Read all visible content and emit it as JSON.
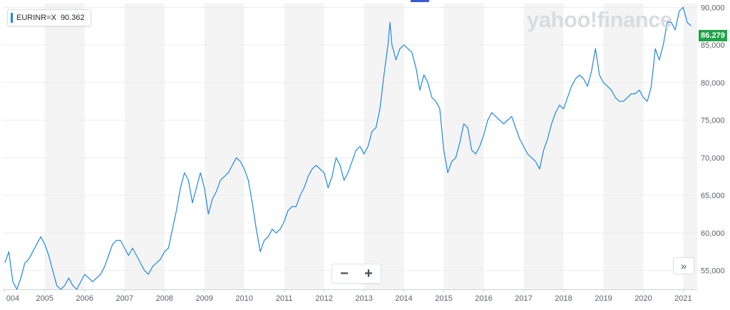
{
  "legend": {
    "symbol": "EURINR=X",
    "value": "90.362"
  },
  "last_price": "86.279",
  "watermark": "yahoo!finance",
  "controls": {
    "zoom_out": "−",
    "zoom_in": "+",
    "expand": "»"
  },
  "colors": {
    "line": "#1e88e5",
    "band": "#f4f4f4",
    "badge": "#21a348",
    "legend_bar": "#1e88e5"
  },
  "chart_data": {
    "type": "line",
    "title": "",
    "xlabel": "",
    "ylabel": "",
    "x_tick_labels": [
      "004",
      "2005",
      "2006",
      "2007",
      "2008",
      "2009",
      "2010",
      "2011",
      "2012",
      "2013",
      "2014",
      "2015",
      "2016",
      "2017",
      "2018",
      "2019",
      "2020",
      "2021"
    ],
    "y_tick_labels": [
      "90,000",
      "85,000",
      "80,000",
      "75,000",
      "70,000",
      "65,000",
      "60,000",
      "55,000"
    ],
    "ylim": [
      52.5,
      90.5
    ],
    "xlim": [
      2003.95,
      2021.35
    ],
    "grid": true,
    "series": [
      {
        "name": "EURINR=X",
        "x": [
          2004.0,
          2004.1,
          2004.2,
          2004.3,
          2004.4,
          2004.5,
          2004.6,
          2004.7,
          2004.8,
          2004.9,
          2005.0,
          2005.1,
          2005.2,
          2005.3,
          2005.4,
          2005.5,
          2005.6,
          2005.7,
          2005.8,
          2005.9,
          2006.0,
          2006.1,
          2006.2,
          2006.3,
          2006.4,
          2006.5,
          2006.6,
          2006.7,
          2006.8,
          2006.9,
          2007.0,
          2007.1,
          2007.2,
          2007.3,
          2007.4,
          2007.5,
          2007.6,
          2007.7,
          2007.8,
          2007.9,
          2008.0,
          2008.1,
          2008.2,
          2008.3,
          2008.4,
          2008.5,
          2008.6,
          2008.7,
          2008.8,
          2008.9,
          2009.0,
          2009.1,
          2009.2,
          2009.3,
          2009.4,
          2009.5,
          2009.6,
          2009.7,
          2009.8,
          2009.9,
          2010.0,
          2010.1,
          2010.2,
          2010.3,
          2010.4,
          2010.5,
          2010.6,
          2010.7,
          2010.8,
          2010.9,
          2011.0,
          2011.1,
          2011.2,
          2011.3,
          2011.4,
          2011.5,
          2011.6,
          2011.7,
          2011.8,
          2011.9,
          2012.0,
          2012.1,
          2012.2,
          2012.3,
          2012.4,
          2012.5,
          2012.6,
          2012.7,
          2012.8,
          2012.9,
          2013.0,
          2013.1,
          2013.2,
          2013.3,
          2013.4,
          2013.5,
          2013.6,
          2013.65,
          2013.7,
          2013.8,
          2013.9,
          2014.0,
          2014.1,
          2014.2,
          2014.3,
          2014.4,
          2014.5,
          2014.6,
          2014.7,
          2014.8,
          2014.9,
          2015.0,
          2015.1,
          2015.2,
          2015.3,
          2015.4,
          2015.5,
          2015.6,
          2015.7,
          2015.8,
          2015.9,
          2016.0,
          2016.1,
          2016.2,
          2016.3,
          2016.4,
          2016.5,
          2016.6,
          2016.7,
          2016.8,
          2016.9,
          2017.0,
          2017.1,
          2017.2,
          2017.3,
          2017.4,
          2017.5,
          2017.6,
          2017.7,
          2017.8,
          2017.9,
          2018.0,
          2018.1,
          2018.2,
          2018.3,
          2018.4,
          2018.5,
          2018.6,
          2018.7,
          2018.8,
          2018.9,
          2019.0,
          2019.1,
          2019.2,
          2019.3,
          2019.4,
          2019.5,
          2019.6,
          2019.7,
          2019.8,
          2019.9,
          2020.0,
          2020.1,
          2020.2,
          2020.3,
          2020.4,
          2020.5,
          2020.6,
          2020.7,
          2020.8,
          2020.9,
          2021.0,
          2021.1,
          2021.2
        ],
        "values": [
          56.0,
          57.5,
          53.5,
          52.5,
          54.0,
          56.0,
          56.5,
          57.5,
          58.5,
          59.5,
          58.5,
          57.0,
          55.0,
          53.0,
          52.5,
          53.0,
          54.0,
          53.0,
          52.5,
          53.5,
          54.5,
          54.0,
          53.5,
          54.0,
          54.5,
          55.5,
          57.0,
          58.5,
          59.0,
          59.0,
          58.0,
          57.0,
          58.0,
          57.0,
          56.0,
          55.0,
          54.5,
          55.5,
          56.0,
          56.5,
          57.5,
          58.0,
          60.5,
          63.0,
          66.0,
          68.0,
          67.0,
          64.0,
          66.0,
          68.0,
          66.0,
          62.5,
          64.5,
          65.5,
          67.0,
          67.5,
          68.0,
          69.0,
          70.0,
          69.5,
          68.5,
          67.0,
          64.0,
          60.5,
          57.5,
          59.0,
          59.5,
          60.5,
          60.0,
          60.5,
          61.5,
          63.0,
          63.5,
          63.5,
          65.0,
          66.0,
          67.5,
          68.5,
          69.0,
          68.5,
          68.0,
          66.0,
          67.5,
          70.0,
          69.0,
          67.0,
          68.0,
          69.5,
          71.0,
          71.5,
          70.5,
          71.5,
          73.5,
          74.0,
          76.5,
          81.0,
          85.0,
          88.0,
          85.0,
          83.0,
          84.5,
          85.0,
          84.5,
          84.0,
          82.0,
          79.0,
          81.0,
          80.0,
          78.0,
          77.5,
          76.5,
          71.0,
          68.0,
          69.5,
          70.0,
          72.0,
          74.5,
          74.0,
          71.0,
          70.5,
          71.5,
          73.0,
          75.0,
          76.0,
          75.5,
          75.0,
          74.5,
          75.0,
          75.5,
          74.0,
          72.5,
          71.5,
          70.5,
          70.0,
          69.5,
          68.5,
          71.0,
          72.5,
          74.5,
          76.0,
          77.0,
          76.5,
          78.0,
          79.5,
          80.5,
          81.0,
          80.5,
          79.5,
          81.5,
          84.5,
          81.0,
          80.0,
          79.5,
          79.0,
          78.0,
          77.5,
          77.5,
          78.0,
          78.5,
          78.5,
          79.0,
          78.0,
          77.5,
          79.5,
          84.5,
          83.0,
          85.0,
          88.0,
          88.0,
          87.0,
          89.5,
          90.0,
          88.0,
          87.5
        ]
      }
    ]
  }
}
